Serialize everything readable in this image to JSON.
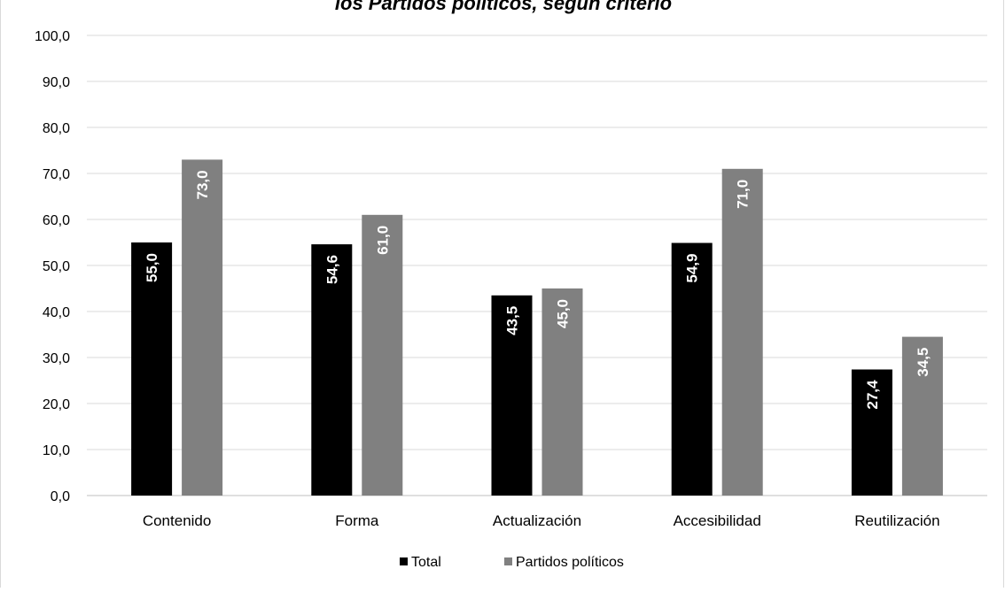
{
  "chart_data": {
    "type": "bar",
    "title": "los Partidos políticos, según criterio",
    "categories": [
      "Contenido",
      "Forma",
      "Actualización",
      "Accesibilidad",
      "Reutilización"
    ],
    "series": [
      {
        "name": "Total",
        "color": "#000000",
        "values": [
          55.0,
          54.6,
          43.5,
          54.9,
          27.4
        ],
        "labels": [
          "55,0",
          "54,6",
          "43,5",
          "54,9",
          "27,4"
        ]
      },
      {
        "name": "Partidos políticos",
        "color": "#808080",
        "values": [
          73.0,
          61.0,
          45.0,
          71.0,
          34.5
        ],
        "labels": [
          "73,0",
          "61,0",
          "45,0",
          "71,0",
          "34,5"
        ]
      }
    ],
    "yticks": [
      "0,0",
      "10,0",
      "20,0",
      "30,0",
      "40,0",
      "50,0",
      "60,0",
      "70,0",
      "80,0",
      "90,0",
      "100,0"
    ],
    "ylim": [
      0,
      100
    ],
    "grid": true,
    "legend_position": "bottom"
  }
}
